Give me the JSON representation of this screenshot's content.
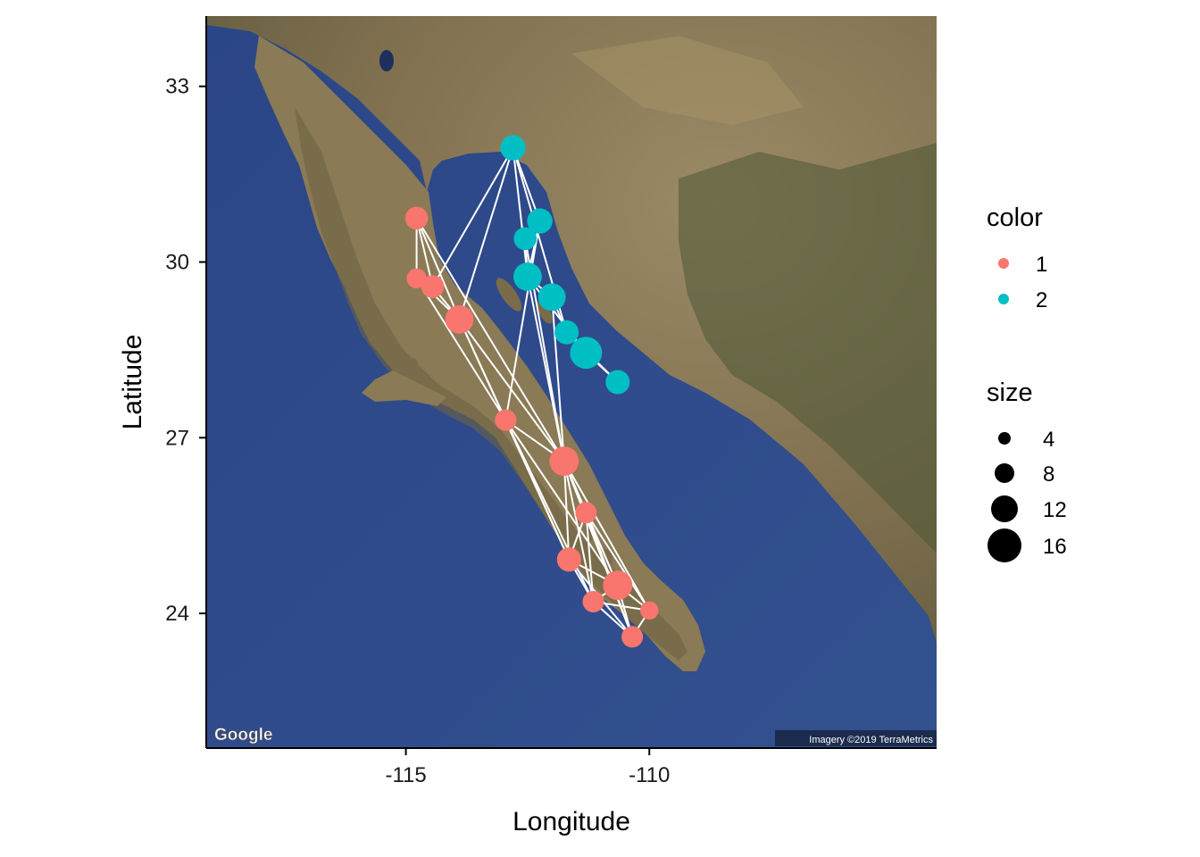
{
  "map": {
    "logo_text": "Google",
    "attribution": "Imagery ©2019 TerraMetrics",
    "colors": {
      "ocean": "#2f4a8a",
      "land": "#8c7a58",
      "mountains": "#4e5a36",
      "edge_lines": "#ffffff",
      "group_1": "#f8766d",
      "group_2": "#00bfc4"
    }
  },
  "chart_data": {
    "type": "scatter",
    "xlabel": "Longitude",
    "ylabel": "Latitude",
    "xlim": [
      -119.1,
      -104.1
    ],
    "ylim": [
      21.7,
      34.2
    ],
    "x_ticks": [
      {
        "value": -115,
        "label": "-115"
      },
      {
        "value": -110,
        "label": "-110"
      }
    ],
    "y_ticks": [
      {
        "value": 33,
        "label": "33"
      },
      {
        "value": 30,
        "label": "30"
      },
      {
        "value": 27,
        "label": "27"
      },
      {
        "value": 24,
        "label": "24"
      }
    ],
    "points": [
      {
        "lon": -112.8,
        "lat": 31.95,
        "color": "2",
        "size": 8
      },
      {
        "lon": -112.25,
        "lat": 30.7,
        "color": "2",
        "size": 8
      },
      {
        "lon": -112.55,
        "lat": 30.4,
        "color": "2",
        "size": 6
      },
      {
        "lon": -112.5,
        "lat": 29.75,
        "color": "2",
        "size": 11
      },
      {
        "lon": -112.0,
        "lat": 29.4,
        "color": "2",
        "size": 10
      },
      {
        "lon": -111.7,
        "lat": 28.8,
        "color": "2",
        "size": 7
      },
      {
        "lon": -111.3,
        "lat": 28.45,
        "color": "2",
        "size": 15
      },
      {
        "lon": -110.65,
        "lat": 27.95,
        "color": "2",
        "size": 7
      },
      {
        "lon": -114.78,
        "lat": 30.75,
        "color": "1",
        "size": 6
      },
      {
        "lon": -114.78,
        "lat": 29.72,
        "color": "1",
        "size": 4
      },
      {
        "lon": -114.45,
        "lat": 29.58,
        "color": "1",
        "size": 6
      },
      {
        "lon": -113.9,
        "lat": 29.02,
        "color": "1",
        "size": 11
      },
      {
        "lon": -112.95,
        "lat": 27.3,
        "color": "1",
        "size": 5
      },
      {
        "lon": -111.75,
        "lat": 26.6,
        "color": "1",
        "size": 12
      },
      {
        "lon": -111.3,
        "lat": 25.72,
        "color": "1",
        "size": 5
      },
      {
        "lon": -111.65,
        "lat": 24.92,
        "color": "1",
        "size": 7
      },
      {
        "lon": -111.15,
        "lat": 24.2,
        "color": "1",
        "size": 5
      },
      {
        "lon": -110.65,
        "lat": 24.48,
        "color": "1",
        "size": 12
      },
      {
        "lon": -110.0,
        "lat": 24.05,
        "color": "1",
        "size": 3
      },
      {
        "lon": -110.35,
        "lat": 23.6,
        "color": "1",
        "size": 5
      }
    ],
    "edges": [
      [
        0,
        10
      ],
      [
        0,
        11
      ],
      [
        0,
        1
      ],
      [
        0,
        3
      ],
      [
        0,
        5
      ],
      [
        1,
        2
      ],
      [
        1,
        3
      ],
      [
        2,
        3
      ],
      [
        3,
        4
      ],
      [
        4,
        5
      ],
      [
        5,
        6
      ],
      [
        6,
        7
      ],
      [
        5,
        7
      ],
      [
        3,
        6
      ],
      [
        2,
        13
      ],
      [
        4,
        13
      ],
      [
        3,
        13
      ],
      [
        1,
        12
      ],
      [
        8,
        9
      ],
      [
        8,
        10
      ],
      [
        8,
        11
      ],
      [
        8,
        13
      ],
      [
        9,
        10
      ],
      [
        9,
        11
      ],
      [
        9,
        12
      ],
      [
        10,
        11
      ],
      [
        11,
        12
      ],
      [
        11,
        13
      ],
      [
        11,
        15
      ],
      [
        12,
        13
      ],
      [
        12,
        15
      ],
      [
        12,
        16
      ],
      [
        12,
        17
      ],
      [
        13,
        14
      ],
      [
        13,
        15
      ],
      [
        13,
        16
      ],
      [
        13,
        17
      ],
      [
        13,
        18
      ],
      [
        13,
        19
      ],
      [
        14,
        15
      ],
      [
        14,
        16
      ],
      [
        14,
        17
      ],
      [
        14,
        18
      ],
      [
        14,
        19
      ],
      [
        15,
        16
      ],
      [
        15,
        17
      ],
      [
        15,
        19
      ],
      [
        16,
        17
      ],
      [
        16,
        18
      ],
      [
        16,
        19
      ],
      [
        17,
        18
      ],
      [
        17,
        19
      ],
      [
        18,
        19
      ]
    ],
    "legend": {
      "placement": "right",
      "color": {
        "title": "color",
        "items": [
          {
            "label": "1",
            "color": "#f8766d"
          },
          {
            "label": "2",
            "color": "#00bfc4"
          }
        ]
      },
      "size": {
        "title": "size",
        "items": [
          {
            "label": "4",
            "value": 4
          },
          {
            "label": "8",
            "value": 8
          },
          {
            "label": "12",
            "value": 12
          },
          {
            "label": "16",
            "value": 16
          }
        ]
      }
    }
  }
}
